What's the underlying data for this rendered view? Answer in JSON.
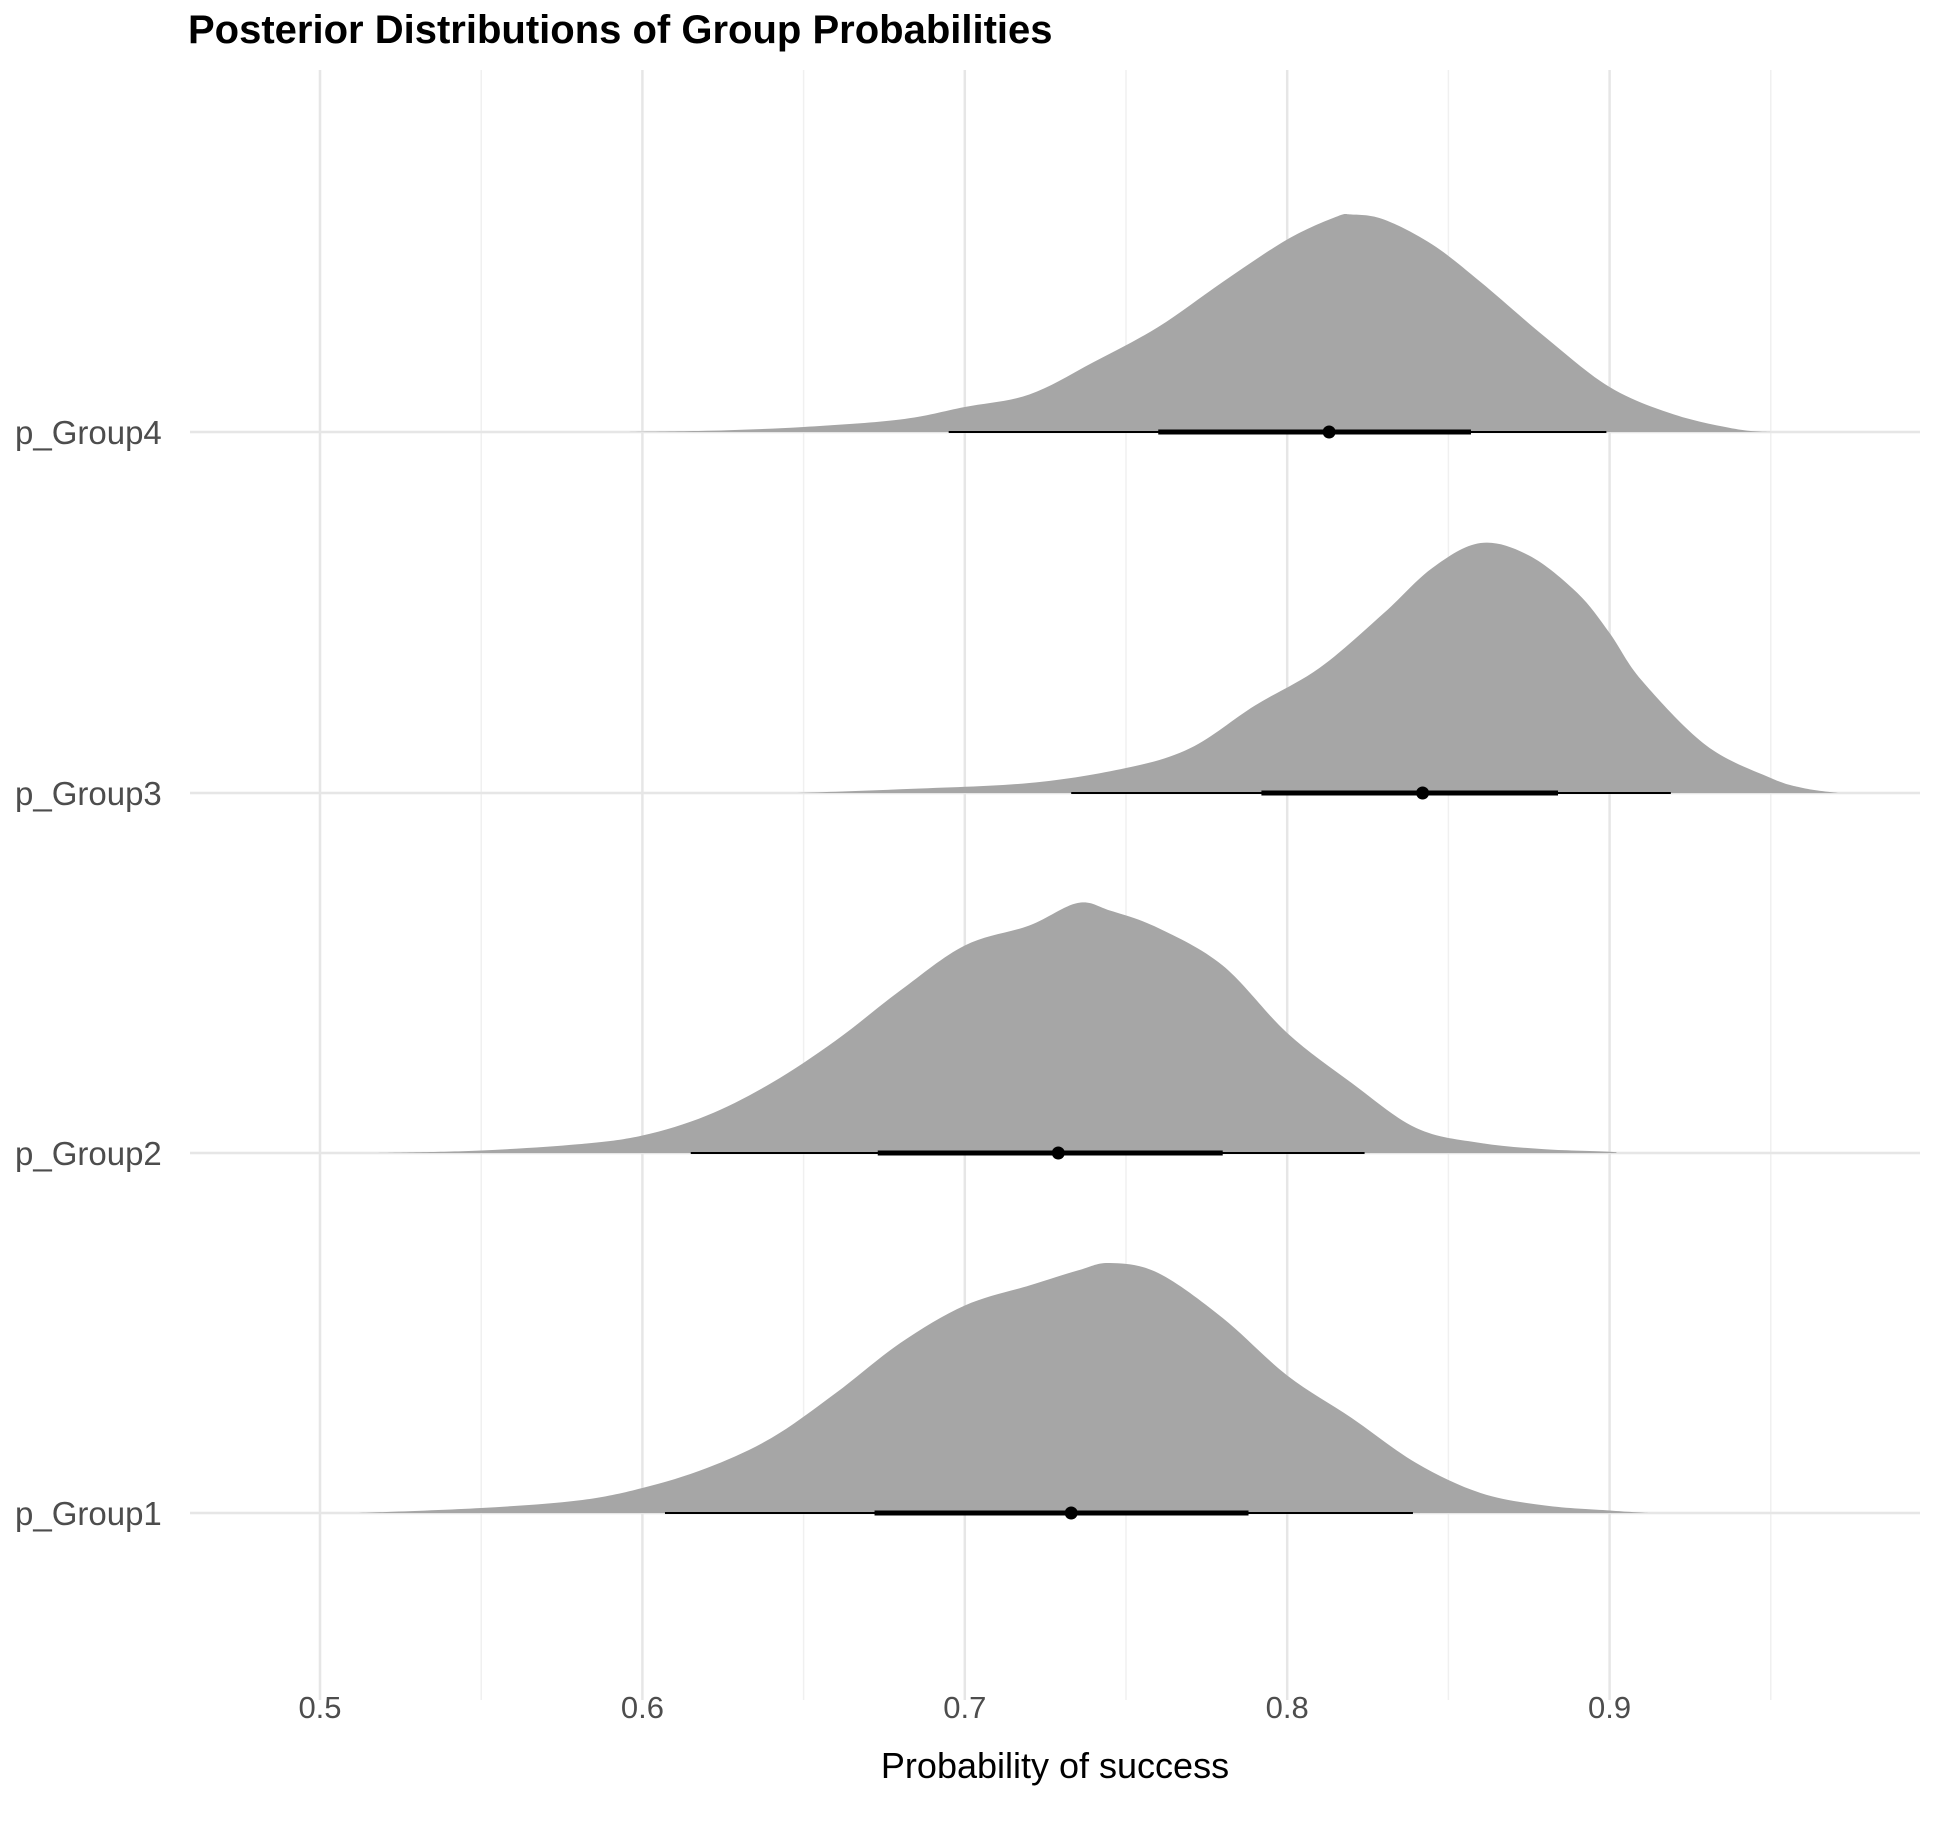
{
  "chart_data": {
    "type": "ridgeline",
    "title": "Posterior Distributions of Group Probabilities",
    "xlabel": "Probability of success",
    "ylabel": "",
    "xlim": [
      0.46,
      0.99
    ],
    "x_ticks": [
      0.5,
      0.6,
      0.7,
      0.8,
      0.9
    ],
    "x_tick_labels": [
      "0.5",
      "0.6",
      "0.7",
      "0.8",
      "0.9"
    ],
    "x_minor_ticks": [
      0.55,
      0.65,
      0.75,
      0.85,
      0.95
    ],
    "grid": true,
    "fill_color": "#a6a6a6",
    "interval_color": "#000000",
    "series": [
      {
        "name": "p_Group1",
        "point": 0.733,
        "interval_66": [
          0.672,
          0.788
        ],
        "interval_95": [
          0.607,
          0.839
        ],
        "density": [
          [
            0.512,
            0.0
          ],
          [
            0.55,
            0.02
          ],
          [
            0.58,
            0.05
          ],
          [
            0.6,
            0.1
          ],
          [
            0.62,
            0.18
          ],
          [
            0.64,
            0.3
          ],
          [
            0.66,
            0.48
          ],
          [
            0.68,
            0.68
          ],
          [
            0.7,
            0.83
          ],
          [
            0.72,
            0.91
          ],
          [
            0.735,
            0.97
          ],
          [
            0.745,
            1.0
          ],
          [
            0.76,
            0.96
          ],
          [
            0.78,
            0.78
          ],
          [
            0.8,
            0.55
          ],
          [
            0.82,
            0.38
          ],
          [
            0.84,
            0.2
          ],
          [
            0.86,
            0.08
          ],
          [
            0.88,
            0.03
          ],
          [
            0.9,
            0.01
          ],
          [
            0.912,
            0.0
          ]
        ]
      },
      {
        "name": "p_Group2",
        "point": 0.729,
        "interval_66": [
          0.673,
          0.78
        ],
        "interval_95": [
          0.615,
          0.824
        ],
        "density": [
          [
            0.518,
            0.0
          ],
          [
            0.55,
            0.01
          ],
          [
            0.58,
            0.035
          ],
          [
            0.6,
            0.07
          ],
          [
            0.62,
            0.15
          ],
          [
            0.64,
            0.28
          ],
          [
            0.66,
            0.45
          ],
          [
            0.68,
            0.65
          ],
          [
            0.7,
            0.83
          ],
          [
            0.72,
            0.91
          ],
          [
            0.735,
            1.0
          ],
          [
            0.745,
            0.97
          ],
          [
            0.76,
            0.9
          ],
          [
            0.78,
            0.75
          ],
          [
            0.8,
            0.48
          ],
          [
            0.82,
            0.28
          ],
          [
            0.84,
            0.1
          ],
          [
            0.86,
            0.04
          ],
          [
            0.88,
            0.015
          ],
          [
            0.9,
            0.005
          ],
          [
            0.902,
            0.0
          ]
        ]
      },
      {
        "name": "p_Group3",
        "point": 0.842,
        "interval_66": [
          0.792,
          0.884
        ],
        "interval_95": [
          0.733,
          0.919
        ],
        "density": [
          [
            0.648,
            0.0
          ],
          [
            0.68,
            0.015
          ],
          [
            0.72,
            0.04
          ],
          [
            0.75,
            0.1
          ],
          [
            0.77,
            0.18
          ],
          [
            0.79,
            0.35
          ],
          [
            0.81,
            0.5
          ],
          [
            0.83,
            0.72
          ],
          [
            0.845,
            0.9
          ],
          [
            0.86,
            1.0
          ],
          [
            0.875,
            0.95
          ],
          [
            0.89,
            0.8
          ],
          [
            0.9,
            0.64
          ],
          [
            0.91,
            0.45
          ],
          [
            0.93,
            0.19
          ],
          [
            0.95,
            0.06
          ],
          [
            0.96,
            0.02
          ],
          [
            0.971,
            0.0
          ]
        ]
      },
      {
        "name": "p_Group4",
        "point": 0.813,
        "interval_66": [
          0.76,
          0.857
        ],
        "interval_95": [
          0.695,
          0.899
        ],
        "density": [
          [
            0.593,
            0.0
          ],
          [
            0.62,
            0.005
          ],
          [
            0.65,
            0.02
          ],
          [
            0.68,
            0.05
          ],
          [
            0.7,
            0.1
          ],
          [
            0.72,
            0.15
          ],
          [
            0.74,
            0.28
          ],
          [
            0.76,
            0.42
          ],
          [
            0.78,
            0.6
          ],
          [
            0.8,
            0.77
          ],
          [
            0.815,
            0.86
          ],
          [
            0.82,
            0.87
          ],
          [
            0.83,
            0.85
          ],
          [
            0.845,
            0.75
          ],
          [
            0.86,
            0.6
          ],
          [
            0.88,
            0.38
          ],
          [
            0.9,
            0.18
          ],
          [
            0.92,
            0.07
          ],
          [
            0.94,
            0.01
          ],
          [
            0.95,
            0.0
          ]
        ]
      }
    ]
  }
}
